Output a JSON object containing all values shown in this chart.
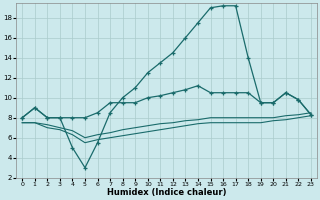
{
  "xlabel": "Humidex (Indice chaleur)",
  "background_color": "#cce9ec",
  "grid_color": "#aacccc",
  "line_color": "#1a6b6b",
  "xlim": [
    -0.5,
    23.5
  ],
  "ylim": [
    2,
    19.5
  ],
  "xticks": [
    0,
    1,
    2,
    3,
    4,
    5,
    6,
    7,
    8,
    9,
    10,
    11,
    12,
    13,
    14,
    15,
    16,
    17,
    18,
    19,
    20,
    21,
    22,
    23
  ],
  "yticks": [
    2,
    4,
    6,
    8,
    10,
    12,
    14,
    16,
    18
  ],
  "line_main_x": [
    0,
    1,
    2,
    3,
    4,
    5,
    6,
    7,
    8,
    9,
    10,
    11,
    12,
    13,
    14,
    15,
    16,
    17,
    18,
    19,
    20,
    21,
    22,
    23
  ],
  "line_main_y": [
    8.0,
    9.0,
    8.0,
    8.0,
    5.0,
    3.0,
    5.5,
    8.5,
    10.0,
    11.0,
    12.5,
    13.5,
    14.5,
    16.0,
    17.5,
    19.0,
    19.2,
    19.2,
    14.0,
    9.5,
    9.5,
    10.5,
    9.8,
    8.3
  ],
  "line_upper_x": [
    0,
    1,
    2,
    3,
    4,
    5,
    6,
    7,
    8,
    9,
    10,
    11,
    12,
    13,
    14,
    15,
    16,
    17,
    18,
    19,
    20,
    21,
    22,
    23
  ],
  "line_upper_y": [
    8.0,
    9.0,
    8.0,
    8.0,
    8.0,
    8.0,
    8.5,
    9.5,
    9.5,
    9.5,
    10.0,
    10.2,
    10.5,
    10.8,
    11.2,
    10.5,
    10.5,
    10.5,
    10.5,
    9.5,
    9.5,
    10.5,
    9.8,
    8.3
  ],
  "line_lower1_x": [
    0,
    1,
    2,
    3,
    4,
    5,
    6,
    7,
    8,
    9,
    10,
    11,
    12,
    13,
    14,
    15,
    16,
    17,
    18,
    19,
    20,
    21,
    22,
    23
  ],
  "line_lower1_y": [
    7.5,
    7.5,
    7.3,
    7.0,
    6.7,
    6.0,
    6.3,
    6.5,
    6.8,
    7.0,
    7.2,
    7.4,
    7.5,
    7.7,
    7.8,
    8.0,
    8.0,
    8.0,
    8.0,
    8.0,
    8.0,
    8.2,
    8.3,
    8.5
  ],
  "line_lower2_x": [
    0,
    1,
    2,
    3,
    4,
    5,
    6,
    7,
    8,
    9,
    10,
    11,
    12,
    13,
    14,
    15,
    16,
    17,
    18,
    19,
    20,
    21,
    22,
    23
  ],
  "line_lower2_y": [
    7.5,
    7.5,
    7.0,
    6.8,
    6.3,
    5.5,
    5.8,
    6.0,
    6.2,
    6.4,
    6.6,
    6.8,
    7.0,
    7.2,
    7.4,
    7.5,
    7.5,
    7.5,
    7.5,
    7.5,
    7.7,
    7.8,
    8.0,
    8.2
  ]
}
